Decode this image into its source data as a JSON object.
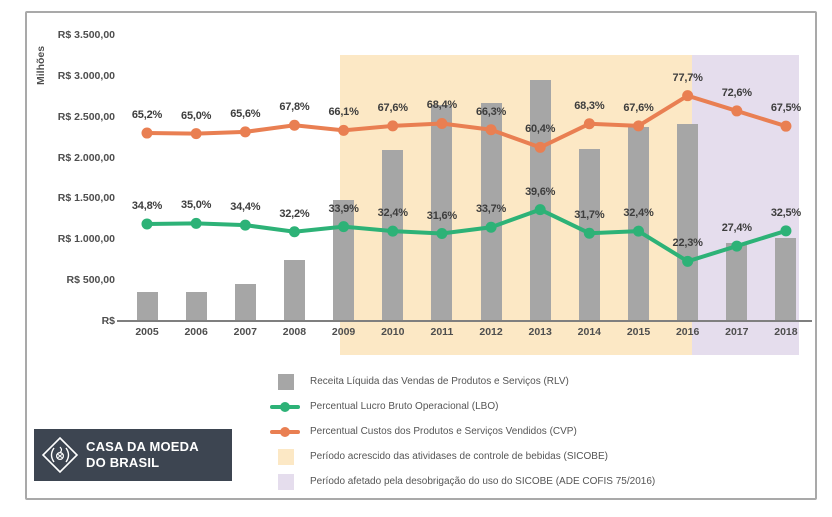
{
  "y_axis": {
    "unit_label": "Milhões",
    "ticks": [
      {
        "label": "R$ 3.500,00",
        "value": 3500
      },
      {
        "label": "R$ 3.000,00",
        "value": 3000
      },
      {
        "label": "R$ 2.500,00",
        "value": 2500
      },
      {
        "label": "R$ 2.000,00",
        "value": 2000
      },
      {
        "label": "R$ 1.500,00",
        "value": 1500
      },
      {
        "label": "R$ 1.000,00",
        "value": 1000
      },
      {
        "label": "R$ 500,00",
        "value": 500
      },
      {
        "label": "R$",
        "value": 0
      }
    ]
  },
  "chart_data": {
    "type": "composite",
    "categories": [
      "2005",
      "2006",
      "2007",
      "2008",
      "2009",
      "2010",
      "2011",
      "2012",
      "2013",
      "2014",
      "2015",
      "2016",
      "2017",
      "2018"
    ],
    "currency_axis": {
      "unit_label": "Milhões",
      "min": 0,
      "max": 3500,
      "tick_step": 500
    },
    "percent_axis": {
      "min": 0,
      "max": 100,
      "visible": false
    },
    "series": [
      {
        "name": "Receita Líquida das Vendas de Produtos e Serviços (RLV)",
        "type": "bar",
        "axis": "currency",
        "color": "#a6a6a6",
        "values": [
          350,
          350,
          450,
          750,
          1480,
          2090,
          2640,
          2670,
          2950,
          2110,
          2380,
          2410,
          960,
          1020
        ]
      },
      {
        "name": "Percentual Lucro Bruto Operacional (LBO)",
        "type": "line",
        "axis": "percent",
        "color": "#2db277",
        "values": [
          34.8,
          35.0,
          34.4,
          32.2,
          33.9,
          32.4,
          31.6,
          33.7,
          39.6,
          31.7,
          32.4,
          22.3,
          27.4,
          32.5
        ],
        "labels": [
          "34,8%",
          "35,0%",
          "34,4%",
          "32,2%",
          "33,9%",
          "32,4%",
          "31,6%",
          "33,7%",
          "39,6%",
          "31,7%",
          "32,4%",
          "22,3%",
          "27,4%",
          "32,5%"
        ]
      },
      {
        "name": "Percentual Custos dos Produtos e Serviços Vendidos (CVP)",
        "type": "line",
        "axis": "percent",
        "color": "#e97f52",
        "values": [
          65.2,
          65.0,
          65.6,
          67.8,
          66.1,
          67.6,
          68.4,
          66.3,
          60.4,
          68.3,
          67.6,
          77.7,
          72.6,
          67.5
        ],
        "labels": [
          "65,2%",
          "65,0%",
          "65,6%",
          "67,8%",
          "66,1%",
          "67,6%",
          "68,4%",
          "66,3%",
          "60,4%",
          "68,3%",
          "67,6%",
          "77,7%",
          "72,6%",
          "67,5%"
        ]
      }
    ],
    "regions": [
      {
        "label": "Período acrescido das atividases de controle de bebidas (SICOBE)",
        "color": "#fce8c5",
        "from": "2009",
        "to": "2016"
      },
      {
        "label": "Período afetado pela desobrigação do uso do SICOBE (ADE COFIS 75/2016)",
        "color": "#e5dded",
        "from": "2017",
        "to": "2018"
      }
    ],
    "legend_position": "bottom"
  },
  "logo": {
    "line1": "CASA DA MOEDA",
    "line2": "DO BRASIL"
  }
}
